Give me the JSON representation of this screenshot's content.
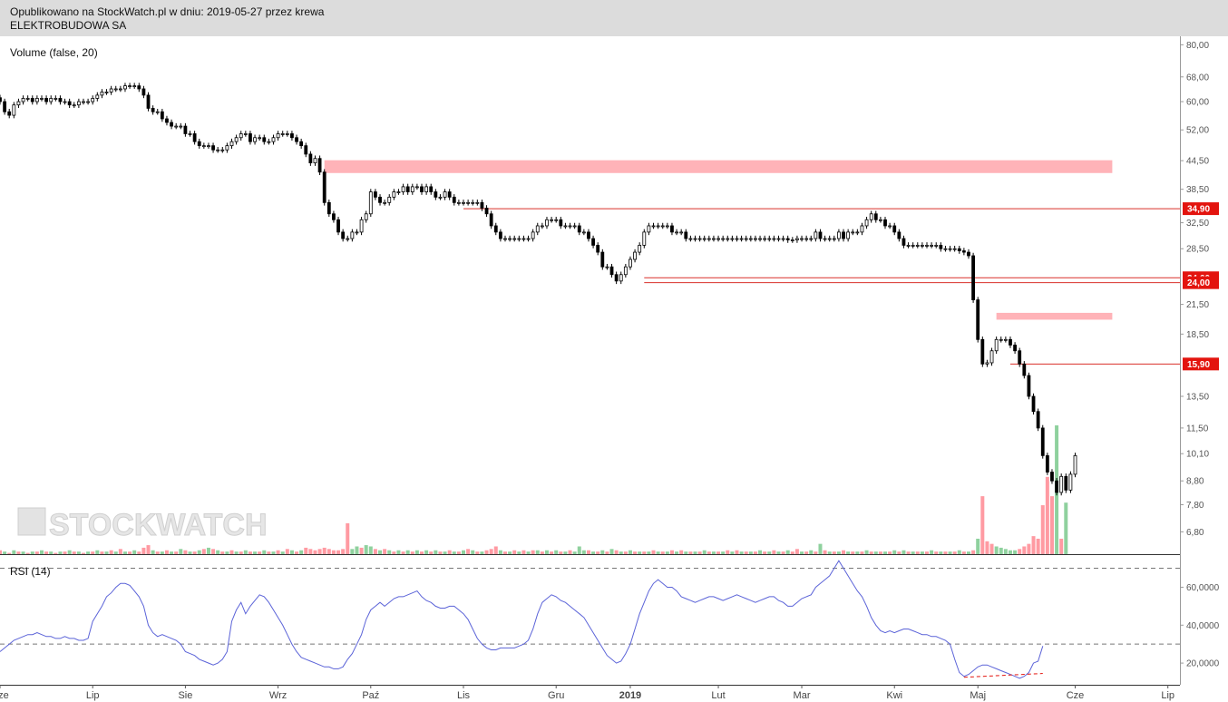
{
  "header": {
    "published": "Opublikowano na StockWatch.pl w dniu: 2019-05-27 przez krewa",
    "instrument": "ELEKTROBUDOWA SA"
  },
  "watermark": "STOCKWATCH",
  "chart_data": [
    {
      "type": "candlestick",
      "title": "ELEKTROBUDOWA SA",
      "panel_label": "Volume (false, 20)",
      "y_scale": "log",
      "ylim": [
        6.3,
        82
      ],
      "y_ticks": [
        "80,00",
        "68,00",
        "60,00",
        "52,00",
        "44,50",
        "38,50",
        "32,50",
        "28,50",
        "24,60",
        "24,00",
        "21,50",
        "18,50",
        "15,90",
        "13,50",
        "11,50",
        "10,10",
        "8,80",
        "7,80",
        "6,80"
      ],
      "x_ticks": [
        "Cze",
        "Lip",
        "Sie",
        "Wrz",
        "Paź",
        "Lis",
        "Gru",
        "2019",
        "Lut",
        "Mar",
        "Kwi",
        "Maj",
        "Cze",
        "Lip"
      ],
      "x_tick_index": [
        0,
        20,
        40,
        60,
        80,
        100,
        120,
        136,
        155,
        173,
        193,
        211,
        232,
        252
      ],
      "closes": [
        60,
        57,
        56,
        59,
        60,
        61,
        61,
        60,
        61,
        61,
        60,
        61,
        61,
        60,
        60,
        59,
        59,
        60,
        60,
        60,
        61,
        62,
        63,
        63,
        64,
        64,
        64,
        65,
        65,
        65,
        64,
        62,
        58,
        57,
        57,
        55,
        54,
        53,
        53,
        53,
        51,
        51,
        49,
        48,
        48,
        48,
        47,
        47,
        47,
        48,
        49,
        50,
        51,
        51,
        49,
        50,
        50,
        49,
        49,
        50,
        51,
        51,
        51,
        50,
        49,
        48,
        46,
        44,
        45,
        42,
        36,
        34,
        33,
        31,
        30,
        30,
        31,
        31,
        33,
        34,
        38,
        37,
        36,
        36,
        37,
        38,
        38,
        39,
        38,
        39,
        39,
        38,
        39,
        38,
        37,
        37,
        38,
        37,
        36,
        36,
        36,
        36,
        36,
        36,
        35,
        34,
        32,
        31,
        30,
        30,
        30,
        30,
        30,
        30,
        30,
        31,
        32,
        32,
        33,
        33,
        33,
        32,
        32,
        32,
        32,
        31,
        31,
        30,
        29,
        28,
        26,
        26,
        25,
        24.2,
        25,
        26,
        27,
        28,
        29,
        31,
        32,
        32,
        32,
        32,
        32,
        31,
        31,
        31,
        30,
        30,
        30,
        30,
        30,
        30,
        30,
        30,
        30,
        30,
        30,
        30,
        30,
        30,
        30,
        30,
        30,
        30,
        30,
        30,
        30,
        30,
        29.8,
        29.8,
        30,
        30,
        30,
        30,
        31,
        30,
        30,
        30,
        30,
        31,
        30,
        31,
        31,
        31,
        32,
        33,
        34,
        33,
        33,
        32,
        32,
        31,
        30,
        29,
        29,
        29,
        29,
        29,
        29,
        29,
        29,
        28.5,
        28.5,
        28.5,
        28.5,
        28.2,
        28,
        27.5,
        22,
        18,
        15.9,
        16,
        17,
        18,
        18,
        18,
        17.5,
        17,
        15.9,
        15,
        13.5,
        12.5,
        11.5,
        10,
        9.2,
        8.8,
        8.3,
        9,
        8.4,
        9.1,
        10
      ],
      "volumes": [
        3,
        2,
        1,
        3,
        2,
        2,
        1,
        2,
        2,
        3,
        2,
        2,
        1,
        2,
        2,
        3,
        2,
        2,
        1,
        2,
        2,
        3,
        2,
        2,
        3,
        2,
        4,
        2,
        2,
        3,
        2,
        5,
        7,
        3,
        2,
        2,
        3,
        2,
        2,
        4,
        3,
        2,
        2,
        3,
        4,
        5,
        4,
        3,
        2,
        2,
        3,
        2,
        2,
        3,
        2,
        2,
        2,
        3,
        2,
        2,
        3,
        2,
        4,
        3,
        2,
        3,
        5,
        4,
        3,
        4,
        5,
        4,
        3,
        3,
        4,
        24,
        4,
        6,
        5,
        7,
        6,
        4,
        3,
        4,
        3,
        2,
        3,
        2,
        3,
        2,
        3,
        2,
        3,
        2,
        3,
        2,
        2,
        3,
        2,
        2,
        3,
        4,
        3,
        2,
        2,
        3,
        4,
        6,
        3,
        2,
        2,
        3,
        2,
        3,
        2,
        3,
        3,
        2,
        3,
        2,
        3,
        2,
        2,
        3,
        2,
        6,
        3,
        3,
        2,
        2,
        3,
        2,
        4,
        3,
        2,
        2,
        3,
        2,
        2,
        2,
        2,
        3,
        2,
        2,
        2,
        3,
        2,
        3,
        2,
        2,
        2,
        2,
        3,
        2,
        2,
        2,
        2,
        3,
        2,
        3,
        2,
        2,
        2,
        2,
        3,
        2,
        2,
        3,
        2,
        2,
        3,
        2,
        4,
        2,
        2,
        3,
        2,
        8,
        3,
        2,
        2,
        2,
        3,
        2,
        2,
        2,
        2,
        3,
        2,
        2,
        2,
        2,
        2,
        3,
        2,
        3,
        2,
        2,
        2,
        2,
        2,
        3,
        2,
        2,
        2,
        2,
        2,
        3,
        2,
        2,
        3,
        12,
        45,
        10,
        8,
        6,
        5,
        4,
        3,
        3,
        4,
        6,
        8,
        14,
        12,
        38,
        60,
        45,
        100,
        12,
        40
      ],
      "volume_up": [
        0,
        1,
        0,
        1,
        0,
        1,
        0,
        1,
        0,
        1,
        0,
        1,
        0,
        1,
        0,
        1,
        0,
        1,
        0,
        1,
        0,
        1,
        0,
        1,
        0,
        1,
        0,
        1,
        0,
        1,
        0,
        0,
        0,
        1,
        0,
        1,
        0,
        1,
        0,
        1,
        0,
        1,
        0,
        1,
        0,
        1,
        0,
        1,
        0,
        1,
        0,
        1,
        0,
        1,
        0,
        1,
        0,
        1,
        0,
        1,
        0,
        1,
        0,
        1,
        0,
        1,
        0,
        0,
        0,
        0,
        0,
        0,
        0,
        0,
        0,
        0,
        1,
        1,
        0,
        1,
        1,
        0,
        1,
        0,
        1,
        0,
        1,
        0,
        1,
        0,
        1,
        0,
        1,
        0,
        1,
        0,
        1,
        0,
        1,
        0,
        1,
        0,
        1,
        0,
        1,
        0,
        0,
        0,
        1,
        0,
        1,
        0,
        1,
        0,
        1,
        0,
        1,
        0,
        1,
        0,
        1,
        0,
        1,
        0,
        1,
        1,
        1,
        0,
        1,
        0,
        1,
        0,
        1,
        0,
        1,
        0,
        1,
        0,
        1,
        0,
        1,
        0,
        1,
        0,
        1,
        0,
        1,
        0,
        1,
        0,
        1,
        0,
        1,
        0,
        1,
        0,
        1,
        0,
        1,
        0,
        1,
        0,
        1,
        0,
        1,
        0,
        1,
        0,
        1,
        0,
        1,
        0,
        0,
        1,
        0,
        1,
        0,
        1,
        0,
        1,
        0,
        1,
        0,
        1,
        0,
        1,
        0,
        1,
        0,
        1,
        0,
        1,
        0,
        1,
        0,
        1,
        0,
        1,
        0,
        1,
        0,
        1,
        0,
        1,
        0,
        1,
        0,
        1,
        0,
        1,
        0,
        1,
        0,
        0,
        0,
        1,
        1,
        1,
        1,
        1,
        0,
        0,
        0,
        0,
        0,
        0,
        0,
        0,
        1,
        0,
        1,
        0,
        1
      ],
      "price_tags": [
        {
          "label": "34,90",
          "value": 34.9
        },
        {
          "label": "24,60",
          "value": 24.6
        },
        {
          "label": "24,00",
          "value": 24.0
        },
        {
          "label": "15,90",
          "value": 15.9
        }
      ],
      "resistance_zones": [
        {
          "from_index": 70,
          "to_index": 240,
          "low": 41.8,
          "high": 44.6
        },
        {
          "from_index": 215,
          "to_index": 240,
          "low": 19.9,
          "high": 20.6
        }
      ],
      "horizontal_lines": [
        {
          "value": 34.9,
          "from_index": 100
        },
        {
          "value": 24.6,
          "from_index": 139
        },
        {
          "value": 24.0,
          "from_index": 139
        },
        {
          "value": 15.9,
          "from_index": 218
        }
      ],
      "colors": {
        "bull": "#8fd19e",
        "bear": "#ff9aa2",
        "zone": "#ffb3b8",
        "line": "#d9302a",
        "tag": "#e3140e"
      }
    },
    {
      "type": "line",
      "panel_label": "RSI (14)",
      "ylim": [
        10,
        76
      ],
      "y_ticks": [
        "60,0000",
        "40,0000",
        "20,0000"
      ],
      "y_tick_values": [
        60,
        40,
        20
      ],
      "dashed_levels": [
        70,
        30
      ],
      "series": [
        {
          "values": [
            26,
            28,
            30,
            32,
            33,
            34,
            35,
            35,
            36,
            35,
            34,
            34,
            33,
            33,
            34,
            33,
            33,
            32,
            32,
            33,
            42,
            46,
            50,
            55,
            57,
            60,
            62,
            62,
            61,
            58,
            55,
            50,
            40,
            36,
            34,
            35,
            34,
            33,
            32,
            30,
            26,
            25,
            24,
            22,
            21,
            20,
            19,
            20,
            22,
            26,
            42,
            48,
            52,
            46,
            50,
            53,
            56,
            55,
            52,
            48,
            44,
            40,
            35,
            30,
            26,
            23,
            22,
            21,
            20,
            19,
            18,
            18,
            17,
            17,
            18,
            22,
            25,
            30,
            35,
            43,
            48,
            50,
            52,
            50,
            52,
            54,
            55,
            55,
            56,
            57,
            58,
            55,
            53,
            52,
            50,
            49,
            49,
            50,
            50,
            48,
            46,
            43,
            38,
            33,
            30,
            28,
            27,
            27,
            28,
            28,
            28,
            28,
            29,
            30,
            32,
            38,
            46,
            52,
            54,
            56,
            55,
            53,
            52,
            50,
            48,
            46,
            44,
            40,
            36,
            32,
            28,
            24,
            22,
            20,
            21,
            25,
            30,
            38,
            46,
            52,
            58,
            62,
            64,
            62,
            60,
            60,
            58,
            55,
            54,
            53,
            52,
            53,
            54,
            55,
            55,
            54,
            53,
            54,
            55,
            56,
            55,
            54,
            53,
            52,
            53,
            54,
            55,
            55,
            53,
            52,
            50,
            50,
            52,
            54,
            55,
            56,
            60,
            62,
            64,
            66,
            70,
            74,
            70,
            66,
            62,
            58,
            55,
            50,
            44,
            40,
            37,
            36,
            37,
            36,
            37,
            38,
            38,
            37,
            36,
            35,
            35,
            34,
            34,
            33,
            32,
            30,
            22,
            15,
            13,
            14,
            16,
            18,
            19,
            19,
            18,
            17,
            16,
            15,
            14,
            13,
            12,
            13,
            15,
            20,
            21,
            29
          ]
        }
      ],
      "colors": {
        "line": "#5b63d8",
        "divergence": "#e3140e"
      }
    }
  ]
}
